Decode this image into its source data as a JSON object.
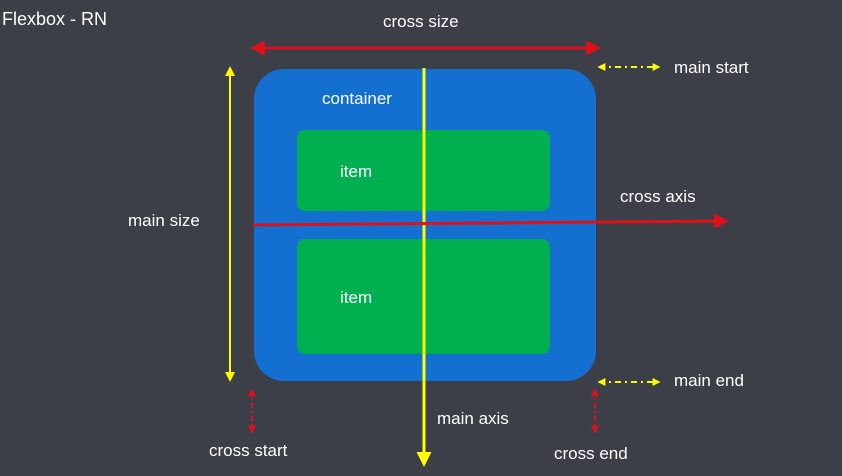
{
  "title": "Flexbox - RN",
  "diagram": {
    "container_label": "container",
    "items": [
      "item",
      "item"
    ],
    "labels": {
      "cross_size": "cross size",
      "main_size": "main size",
      "main_start": "main start",
      "main_end": "main end",
      "cross_axis": "cross axis",
      "main_axis": "main axis",
      "cross_start": "cross start",
      "cross_end": "cross end"
    },
    "colors": {
      "background": "#3c3e48",
      "container": "#1470d0",
      "item": "#00b050",
      "main_axis": "#ffff00",
      "cross_axis": "#e0101a",
      "main_marker": "#ffff00",
      "cross_marker": "#e0101a"
    }
  }
}
